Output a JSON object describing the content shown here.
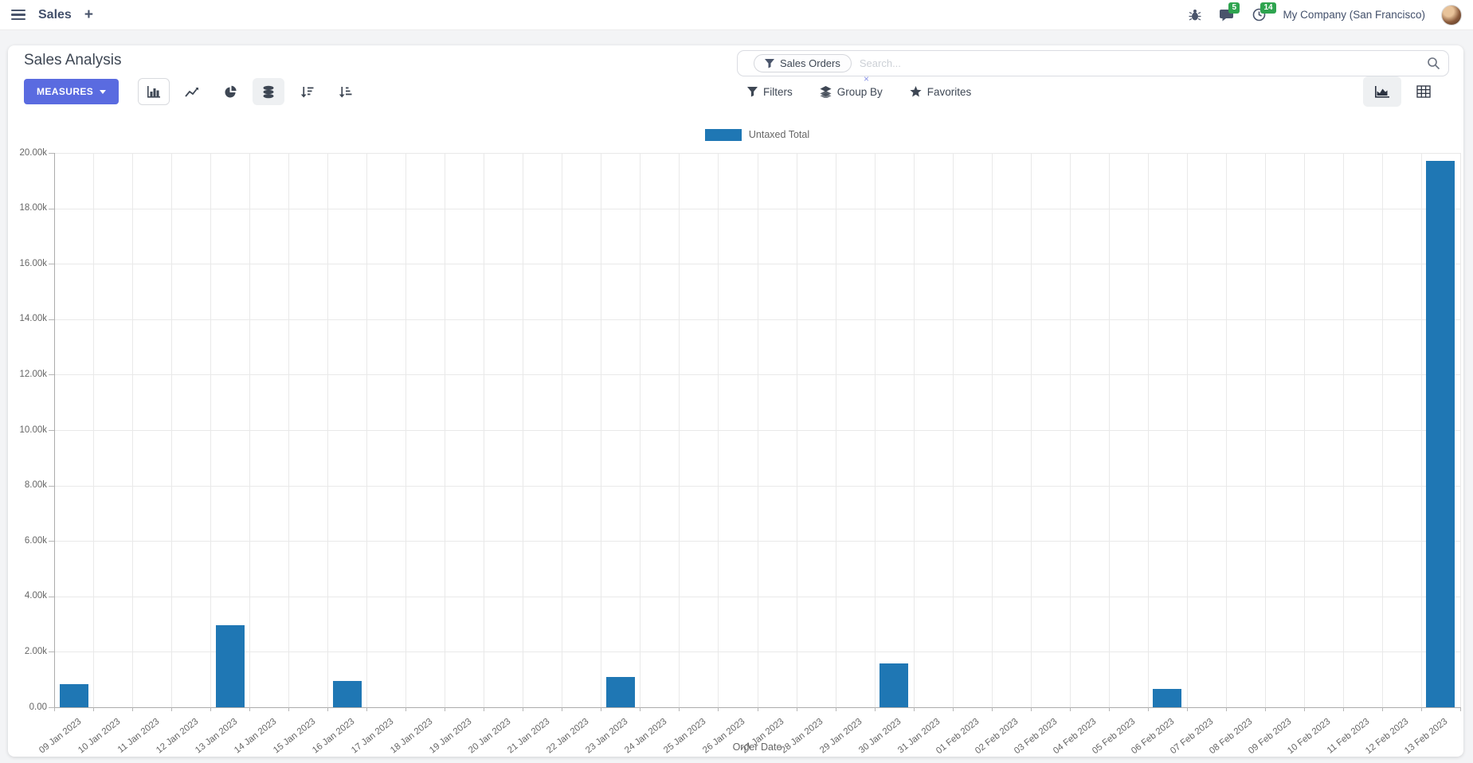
{
  "navbar": {
    "app_name": "Sales",
    "plus": "+",
    "messages_count": "5",
    "activities_count": "14",
    "company": "My Company (San Francisco)"
  },
  "control_panel": {
    "title": "Sales Analysis",
    "measures_label": "MEASURES",
    "search": {
      "facet": "Sales Orders",
      "placeholder": "Search...",
      "remove_facet": "×"
    },
    "filters_label": "Filters",
    "group_by_label": "Group By",
    "favorites_label": "Favorites"
  },
  "colors": {
    "accent": "#5a6be0",
    "bar": "#1f77b4",
    "badge_green": "#2ea44f"
  },
  "chart_data": {
    "type": "bar",
    "title": "",
    "xlabel": "Order Date",
    "ylabel": "",
    "ylim": [
      0,
      20000
    ],
    "grid": true,
    "legend_position": "top-center",
    "y_ticks": [
      "0.00",
      "2.00k",
      "4.00k",
      "6.00k",
      "8.00k",
      "10.00k",
      "12.00k",
      "14.00k",
      "16.00k",
      "18.00k",
      "20.00k"
    ],
    "categories": [
      "09 Jan 2023",
      "10 Jan 2023",
      "11 Jan 2023",
      "12 Jan 2023",
      "13 Jan 2023",
      "14 Jan 2023",
      "15 Jan 2023",
      "16 Jan 2023",
      "17 Jan 2023",
      "18 Jan 2023",
      "19 Jan 2023",
      "20 Jan 2023",
      "21 Jan 2023",
      "22 Jan 2023",
      "23 Jan 2023",
      "24 Jan 2023",
      "25 Jan 2023",
      "26 Jan 2023",
      "27 Jan 2023",
      "28 Jan 2023",
      "29 Jan 2023",
      "30 Jan 2023",
      "31 Jan 2023",
      "01 Feb 2023",
      "02 Feb 2023",
      "03 Feb 2023",
      "04 Feb 2023",
      "05 Feb 2023",
      "06 Feb 2023",
      "07 Feb 2023",
      "08 Feb 2023",
      "09 Feb 2023",
      "10 Feb 2023",
      "11 Feb 2023",
      "12 Feb 2023",
      "13 Feb 2023"
    ],
    "series": [
      {
        "name": "Untaxed Total",
        "color": "#1f77b4",
        "values": [
          830,
          0,
          0,
          0,
          2950,
          0,
          0,
          950,
          0,
          0,
          0,
          0,
          0,
          0,
          1080,
          0,
          0,
          0,
          0,
          0,
          0,
          1570,
          0,
          0,
          0,
          0,
          0,
          0,
          650,
          0,
          0,
          0,
          0,
          0,
          0,
          19700
        ]
      }
    ]
  }
}
